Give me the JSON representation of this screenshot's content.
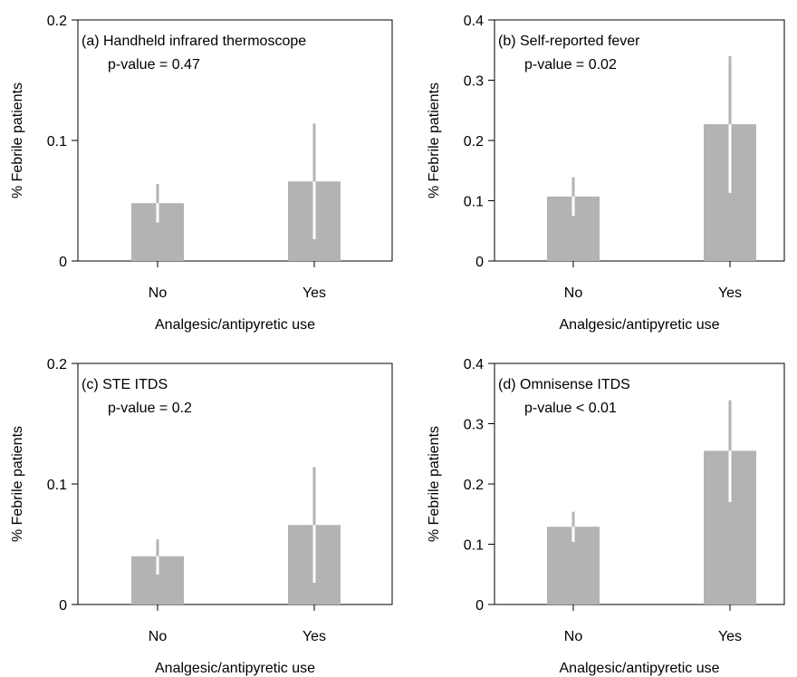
{
  "colors": {
    "bar": "#b3b3b3",
    "error_bar_outside": "#b3b3b3",
    "error_bar_inside": "#ffffff",
    "axis": "#000000"
  },
  "chart_data": [
    {
      "type": "bar",
      "panel": "a",
      "categories": [
        "No",
        "Yes"
      ],
      "values": [
        0.048,
        0.066
      ],
      "error_low": [
        0.032,
        0.018
      ],
      "error_high": [
        0.064,
        0.114
      ],
      "title": "(a) Handheld infrared thermoscope",
      "subtitle": "p-value = 0.47",
      "xlabel": "Analgesic/antipyretic use",
      "ylabel": "% Febrile patients",
      "ylim": [
        0,
        0.2
      ],
      "yticks": [
        "0",
        "0.1",
        "0.2"
      ],
      "grid": false,
      "legend": "none"
    },
    {
      "type": "bar",
      "panel": "b",
      "categories": [
        "No",
        "Yes"
      ],
      "values": [
        0.107,
        0.227
      ],
      "error_low": [
        0.075,
        0.113
      ],
      "error_high": [
        0.139,
        0.34
      ],
      "title": "(b) Self-reported fever",
      "subtitle": "p-value = 0.02",
      "xlabel": "Analgesic/antipyretic use",
      "ylabel": "% Febrile patients",
      "ylim": [
        0,
        0.4
      ],
      "yticks": [
        "0",
        "0.1",
        "0.2",
        "0.3",
        "0.4"
      ],
      "grid": false,
      "legend": "none"
    },
    {
      "type": "bar",
      "panel": "c",
      "categories": [
        "No",
        "Yes"
      ],
      "values": [
        0.04,
        0.066
      ],
      "error_low": [
        0.025,
        0.018
      ],
      "error_high": [
        0.054,
        0.114
      ],
      "title": "(c) STE ITDS",
      "subtitle": "p-value = 0.2",
      "xlabel": "Analgesic/antipyretic use",
      "ylabel": "% Febrile patients",
      "ylim": [
        0,
        0.2
      ],
      "yticks": [
        "0",
        "0.1",
        "0.2"
      ],
      "grid": false,
      "legend": "none"
    },
    {
      "type": "bar",
      "panel": "d",
      "categories": [
        "No",
        "Yes"
      ],
      "values": [
        0.129,
        0.255
      ],
      "error_low": [
        0.104,
        0.17
      ],
      "error_high": [
        0.154,
        0.339
      ],
      "title": "(d) Omnisense ITDS",
      "subtitle": "p-value < 0.01",
      "xlabel": "Analgesic/antipyretic use",
      "ylabel": "% Febrile patients",
      "ylim": [
        0,
        0.4
      ],
      "yticks": [
        "0",
        "0.1",
        "0.2",
        "0.3",
        "0.4"
      ],
      "grid": false,
      "legend": "none"
    }
  ]
}
